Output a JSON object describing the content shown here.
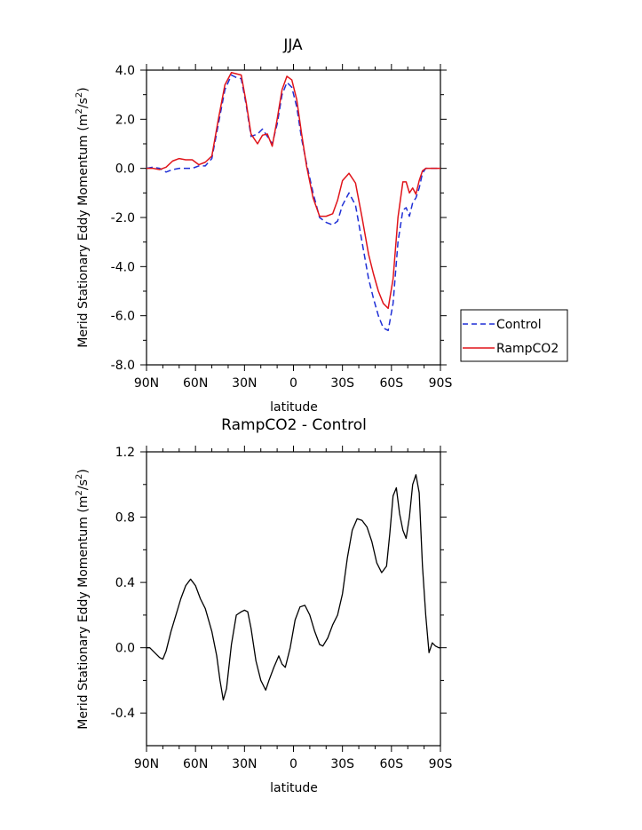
{
  "colors": {
    "control": "#1f2fd6",
    "rampco2": "#e0141a",
    "diff": "#000000"
  },
  "chart_data": [
    {
      "type": "line",
      "title": "JJA",
      "xlabel": "latitude",
      "ylabel": "Merid Stationary Eddy Momentum (m²/s²)",
      "ylabel_main": "Merid Stationary Eddy Momentum (m",
      "ylabel_sup1": "2",
      "ylabel_mid": "/s",
      "ylabel_sup2": "2",
      "ylabel_end": ")",
      "xlim": [
        90,
        -90
      ],
      "ylim": [
        -8,
        4
      ],
      "xticks": [
        {
          "value": 90,
          "label": "90N"
        },
        {
          "value": 60,
          "label": "60N"
        },
        {
          "value": 30,
          "label": "30N"
        },
        {
          "value": 0,
          "label": "0"
        },
        {
          "value": -30,
          "label": "30S"
        },
        {
          "value": -60,
          "label": "60S"
        },
        {
          "value": -90,
          "label": "90S"
        }
      ],
      "yticks": [
        {
          "value": 4,
          "label": "4.0"
        },
        {
          "value": 2,
          "label": "2.0"
        },
        {
          "value": 0,
          "label": "0.0"
        },
        {
          "value": -2,
          "label": "-2.0"
        },
        {
          "value": -4,
          "label": "-4.0"
        },
        {
          "value": -6,
          "label": "-6.0"
        },
        {
          "value": -8,
          "label": "-8.0"
        }
      ],
      "legend": {
        "placement": "outside-right",
        "entries": [
          "Control",
          "RampCO2"
        ]
      },
      "series": [
        {
          "name": "Control",
          "style": "dashed",
          "x": [
            90,
            86,
            82,
            78,
            74,
            70,
            66,
            62,
            58,
            54,
            50,
            46,
            42,
            38,
            35,
            32,
            29,
            26,
            22,
            19,
            16,
            13,
            10,
            7,
            4,
            1,
            -2,
            -5,
            -8,
            -12,
            -16,
            -20,
            -24,
            -27,
            -30,
            -34,
            -38,
            -42,
            -46,
            -49,
            -52,
            -55,
            -58,
            -61,
            -64,
            -67,
            -69,
            -71,
            -73,
            -75,
            -77,
            -79,
            -81,
            -83,
            -85,
            -87,
            -89,
            -90
          ],
          "y": [
            0,
            0.05,
            0,
            -0.15,
            -0.05,
            0,
            0,
            0,
            0.1,
            0.1,
            0.4,
            1.8,
            3.2,
            3.8,
            3.7,
            3.65,
            2.6,
            1.3,
            1.4,
            1.6,
            1.3,
            1.0,
            1.8,
            3.0,
            3.5,
            3.3,
            2.5,
            1.2,
            0.2,
            -1.0,
            -2.0,
            -2.2,
            -2.3,
            -2.15,
            -1.5,
            -1.0,
            -1.5,
            -3.0,
            -4.5,
            -5.3,
            -6.0,
            -6.5,
            -6.6,
            -5.5,
            -3.0,
            -1.7,
            -1.6,
            -1.95,
            -1.4,
            -1.2,
            -0.8,
            -0.2,
            0,
            0,
            0,
            0,
            0,
            0
          ]
        },
        {
          "name": "RampCO2",
          "style": "solid",
          "x": [
            90,
            86,
            82,
            78,
            74,
            70,
            66,
            62,
            58,
            54,
            50,
            46,
            42,
            38,
            35,
            32,
            29,
            26,
            22,
            19,
            16,
            13,
            10,
            7,
            4,
            1,
            -2,
            -5,
            -8,
            -12,
            -16,
            -20,
            -24,
            -27,
            -30,
            -34,
            -38,
            -42,
            -46,
            -49,
            -52,
            -55,
            -58,
            -61,
            -64,
            -67,
            -69,
            -71,
            -73,
            -75,
            -77,
            -79,
            -81,
            -83,
            -85,
            -87,
            -89,
            -90
          ],
          "y": [
            0,
            0,
            -0.05,
            0.05,
            0.3,
            0.4,
            0.35,
            0.35,
            0.15,
            0.25,
            0.5,
            2.0,
            3.4,
            3.9,
            3.85,
            3.8,
            2.7,
            1.4,
            1.0,
            1.35,
            1.4,
            0.9,
            2.0,
            3.2,
            3.75,
            3.6,
            2.8,
            1.4,
            0.1,
            -1.2,
            -1.95,
            -1.95,
            -1.85,
            -1.3,
            -0.5,
            -0.2,
            -0.6,
            -2.0,
            -3.5,
            -4.3,
            -5.0,
            -5.5,
            -5.7,
            -4.5,
            -2.0,
            -0.55,
            -0.55,
            -1.0,
            -0.8,
            -1.05,
            -0.5,
            -0.1,
            0,
            0,
            0,
            0,
            0,
            0
          ]
        }
      ]
    },
    {
      "type": "line",
      "title": "RampCO2 - Control",
      "xlabel": "latitude",
      "ylabel": "Merid Stationary Eddy Momentum (m²/s²)",
      "ylabel_main": "Merid Stationary Eddy Momentum (m",
      "ylabel_sup1": "2",
      "ylabel_mid": "/s",
      "ylabel_sup2": "2",
      "ylabel_end": ")",
      "xlim": [
        90,
        -90
      ],
      "ylim": [
        -0.6,
        1.2
      ],
      "xticks": [
        {
          "value": 90,
          "label": "90N"
        },
        {
          "value": 60,
          "label": "60N"
        },
        {
          "value": 30,
          "label": "30N"
        },
        {
          "value": 0,
          "label": "0"
        },
        {
          "value": -30,
          "label": "30S"
        },
        {
          "value": -60,
          "label": "60S"
        },
        {
          "value": -90,
          "label": "90S"
        }
      ],
      "yticks": [
        {
          "value": 1.2,
          "label": "1.2"
        },
        {
          "value": 0.8,
          "label": "0.8"
        },
        {
          "value": 0.4,
          "label": "0.4"
        },
        {
          "value": 0.0,
          "label": "0.0"
        },
        {
          "value": -0.4,
          "label": "-0.4"
        }
      ],
      "series": [
        {
          "name": "RampCO2 - Control",
          "style": "solid",
          "x": [
            90,
            88,
            85,
            82,
            80,
            78,
            75,
            72,
            69,
            66,
            63,
            60,
            57,
            54,
            50,
            47,
            45,
            43,
            41,
            38,
            35,
            32,
            30,
            28,
            26,
            23,
            20,
            17,
            15,
            12,
            9,
            7,
            5,
            2,
            -1,
            -4,
            -7,
            -10,
            -13,
            -16,
            -18,
            -21,
            -24,
            -27,
            -30,
            -33,
            -36,
            -39,
            -42,
            -45,
            -48,
            -51,
            -54,
            -57,
            -59,
            -61,
            -63,
            -65,
            -67,
            -69,
            -71,
            -73,
            -75,
            -77,
            -79,
            -81,
            -83,
            -85,
            -87,
            -89,
            -90
          ],
          "y": [
            0,
            0,
            -0.03,
            -0.06,
            -0.07,
            -0.02,
            0.1,
            0.2,
            0.3,
            0.38,
            0.42,
            0.38,
            0.3,
            0.24,
            0.1,
            -0.05,
            -0.2,
            -0.32,
            -0.25,
            0.02,
            0.2,
            0.22,
            0.23,
            0.22,
            0.12,
            -0.08,
            -0.2,
            -0.26,
            -0.2,
            -0.12,
            -0.05,
            -0.1,
            -0.12,
            0.0,
            0.17,
            0.25,
            0.26,
            0.2,
            0.1,
            0.02,
            0.01,
            0.06,
            0.14,
            0.2,
            0.33,
            0.55,
            0.72,
            0.79,
            0.78,
            0.74,
            0.65,
            0.52,
            0.46,
            0.5,
            0.7,
            0.93,
            0.98,
            0.82,
            0.72,
            0.67,
            0.8,
            1.0,
            1.06,
            0.95,
            0.5,
            0.2,
            -0.03,
            0.03,
            0.01,
            0,
            0
          ]
        }
      ]
    }
  ]
}
